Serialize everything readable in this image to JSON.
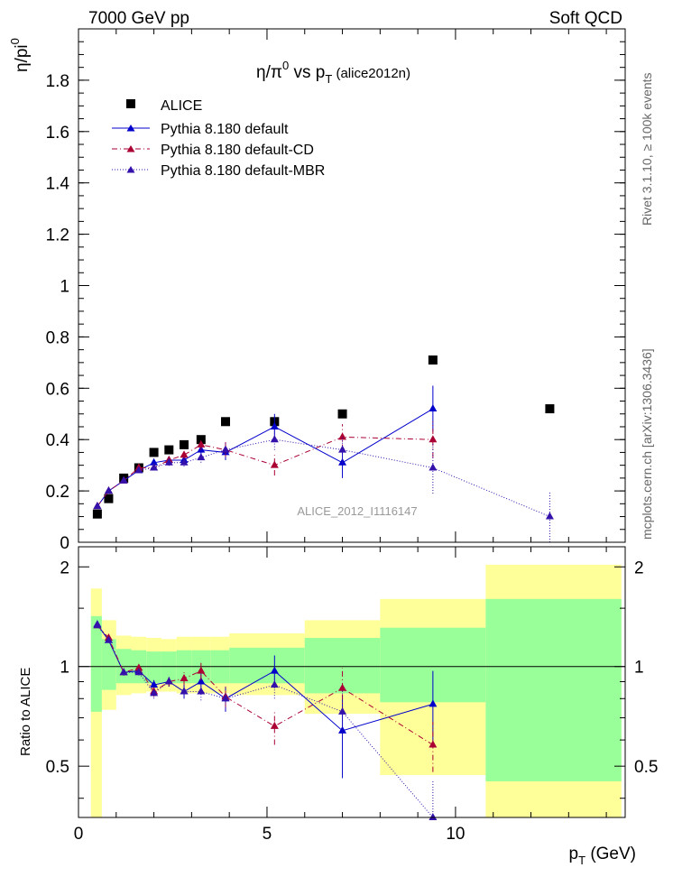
{
  "header": {
    "left": "7000 GeV pp",
    "right": "Soft QCD"
  },
  "side_labels": {
    "rivet": "Rivet 3.1.10, ≥ 100k events",
    "mcplots": "mcplots.cern.ch [arXiv:1306.3436]"
  },
  "chart_data": [
    {
      "type": "scatter",
      "title": "η/π⁰ vs p_T (alice2012n)",
      "title_parts": {
        "main": "η/π",
        "sup": "0",
        "vs": " vs p",
        "sub": "T",
        "tag": " (alice2012n)"
      },
      "ylabel": "η/pi⁰",
      "ylabel_parts": {
        "main": "η/pi",
        "sup": "0"
      },
      "xlim": [
        0,
        14.5
      ],
      "ylim": [
        0,
        2.0
      ],
      "yticks": [
        "0",
        "0.2",
        "0.4",
        "0.6",
        "0.8",
        "1",
        "1.2",
        "1.4",
        "1.6",
        "1.8"
      ],
      "watermark": "ALICE_2012_I1116147",
      "legend": [
        {
          "label": "ALICE",
          "color": "#000000",
          "marker": "square",
          "line": "none"
        },
        {
          "label": "Pythia 8.180 default",
          "color": "#0000cc",
          "marker": "triangle",
          "line": "solid"
        },
        {
          "label": "Pythia 8.180 default-CD",
          "color": "#aa0033",
          "marker": "triangle",
          "line": "dashdot"
        },
        {
          "label": "Pythia 8.180 default-MBR",
          "color": "#3311aa",
          "marker": "triangle",
          "line": "dotted"
        }
      ],
      "series": [
        {
          "name": "ALICE",
          "x": [
            0.5,
            0.8,
            1.2,
            1.6,
            2.0,
            2.4,
            2.8,
            3.25,
            3.9,
            5.2,
            7.0,
            9.4,
            12.5
          ],
          "y": [
            0.11,
            0.17,
            0.25,
            0.29,
            0.35,
            0.36,
            0.38,
            0.4,
            0.47,
            0.47,
            0.5,
            0.71,
            0.52
          ]
        },
        {
          "name": "Pythia 8.180 default",
          "x": [
            0.5,
            0.8,
            1.2,
            1.6,
            2.0,
            2.4,
            2.8,
            3.25,
            3.9,
            5.2,
            7.0,
            9.4
          ],
          "y": [
            0.14,
            0.2,
            0.24,
            0.28,
            0.31,
            0.32,
            0.32,
            0.36,
            0.35,
            0.45,
            0.31,
            0.52
          ],
          "err": [
            0.004,
            0.005,
            0.006,
            0.008,
            0.01,
            0.012,
            0.015,
            0.02,
            0.03,
            0.05,
            0.06,
            0.09
          ]
        },
        {
          "name": "Pythia 8.180 default-CD",
          "x": [
            0.5,
            0.8,
            1.2,
            1.6,
            2.0,
            2.4,
            2.8,
            3.25,
            3.9,
            5.2,
            7.0,
            9.4
          ],
          "y": [
            0.14,
            0.2,
            0.24,
            0.29,
            0.29,
            0.32,
            0.34,
            0.38,
            0.36,
            0.3,
            0.41,
            0.4
          ],
          "err": [
            0.004,
            0.005,
            0.006,
            0.008,
            0.01,
            0.012,
            0.015,
            0.02,
            0.03,
            0.04,
            0.05,
            0.07
          ]
        },
        {
          "name": "Pythia 8.180 default-MBR",
          "x": [
            0.5,
            0.8,
            1.2,
            1.6,
            2.0,
            2.4,
            2.8,
            3.25,
            3.9,
            5.2,
            7.0,
            9.4,
            12.5
          ],
          "y": [
            0.14,
            0.2,
            0.24,
            0.28,
            0.29,
            0.31,
            0.31,
            0.33,
            0.36,
            0.4,
            0.36,
            0.29,
            0.1
          ],
          "err": [
            0.004,
            0.005,
            0.006,
            0.008,
            0.01,
            0.012,
            0.015,
            0.02,
            0.03,
            0.04,
            0.05,
            0.1,
            0.1
          ]
        }
      ]
    },
    {
      "type": "scatter",
      "ylabel": "Ratio to ALICE",
      "xlabel": "p_T (GeV)",
      "xlabel_parts": {
        "main": "p",
        "sub": "T",
        "unit": " (GeV)"
      },
      "xlim": [
        0,
        14.5
      ],
      "ylim": [
        0.35,
        2.3
      ],
      "xticks": [
        "0",
        "5",
        "10"
      ],
      "yticks": [
        "0.5",
        "1",
        "2"
      ],
      "bands": [
        {
          "x0": 0.33,
          "x1": 0.62,
          "g_lo": 0.73,
          "g_hi": 1.42,
          "y_lo": 0.35,
          "y_hi": 1.72
        },
        {
          "x0": 0.62,
          "x1": 1.0,
          "g_lo": 0.85,
          "g_hi": 1.21,
          "y_lo": 0.74,
          "y_hi": 1.38
        },
        {
          "x0": 1.0,
          "x1": 1.4,
          "g_lo": 0.89,
          "g_hi": 1.13,
          "y_lo": 0.82,
          "y_hi": 1.24
        },
        {
          "x0": 1.4,
          "x1": 1.8,
          "g_lo": 0.89,
          "g_hi": 1.12,
          "y_lo": 0.83,
          "y_hi": 1.23
        },
        {
          "x0": 1.8,
          "x1": 2.2,
          "g_lo": 0.89,
          "g_hi": 1.11,
          "y_lo": 0.84,
          "y_hi": 1.22
        },
        {
          "x0": 2.2,
          "x1": 2.6,
          "g_lo": 0.89,
          "g_hi": 1.11,
          "y_lo": 0.84,
          "y_hi": 1.21
        },
        {
          "x0": 2.6,
          "x1": 3.0,
          "g_lo": 0.89,
          "g_hi": 1.12,
          "y_lo": 0.83,
          "y_hi": 1.23
        },
        {
          "x0": 3.0,
          "x1": 3.5,
          "g_lo": 0.89,
          "g_hi": 1.12,
          "y_lo": 0.83,
          "y_hi": 1.23
        },
        {
          "x0": 3.5,
          "x1": 4.0,
          "g_lo": 0.89,
          "g_hi": 1.12,
          "y_lo": 0.83,
          "y_hi": 1.23
        },
        {
          "x0": 4.0,
          "x1": 6.0,
          "g_lo": 0.89,
          "g_hi": 1.14,
          "y_lo": 0.82,
          "y_hi": 1.26
        },
        {
          "x0": 6.0,
          "x1": 8.0,
          "g_lo": 0.83,
          "g_hi": 1.22,
          "y_lo": 0.72,
          "y_hi": 1.38
        },
        {
          "x0": 8.0,
          "x1": 10.8,
          "g_lo": 0.78,
          "g_hi": 1.31,
          "y_lo": 0.47,
          "y_hi": 1.6
        },
        {
          "x0": 10.8,
          "x1": 14.4,
          "g_lo": 0.45,
          "g_hi": 1.6,
          "y_lo": 0.35,
          "y_hi": 2.03
        }
      ],
      "series": [
        {
          "name": "Pythia 8.180 default",
          "x": [
            0.5,
            0.8,
            1.2,
            1.6,
            2.0,
            2.4,
            2.8,
            3.25,
            3.9,
            5.2,
            7.0,
            9.4
          ],
          "y": [
            1.34,
            1.2,
            0.96,
            0.97,
            0.88,
            0.9,
            0.84,
            0.9,
            0.8,
            0.97,
            0.64,
            0.77
          ],
          "err": [
            0.02,
            0.02,
            0.02,
            0.02,
            0.03,
            0.03,
            0.04,
            0.06,
            0.07,
            0.11,
            0.18,
            0.2
          ]
        },
        {
          "name": "Pythia 8.180 default-CD",
          "x": [
            0.5,
            0.8,
            1.2,
            1.6,
            2.0,
            2.4,
            2.8,
            3.25,
            3.9,
            5.2,
            7.0,
            9.4
          ],
          "y": [
            1.33,
            1.22,
            0.96,
            0.99,
            0.84,
            0.9,
            0.92,
            0.97,
            0.81,
            0.66,
            0.86,
            0.58
          ],
          "err": [
            0.02,
            0.02,
            0.02,
            0.02,
            0.03,
            0.03,
            0.04,
            0.06,
            0.06,
            0.08,
            0.13,
            0.1
          ]
        },
        {
          "name": "Pythia 8.180 default-MBR",
          "x": [
            0.5,
            0.8,
            1.2,
            1.6,
            2.0,
            2.4,
            2.8,
            3.25,
            3.9,
            5.2,
            7.0,
            9.4
          ],
          "y": [
            1.33,
            1.2,
            0.96,
            0.96,
            0.83,
            0.9,
            0.84,
            0.84,
            0.8,
            0.88,
            0.73,
            0.35
          ],
          "err": [
            0.02,
            0.02,
            0.02,
            0.02,
            0.03,
            0.03,
            0.04,
            0.05,
            0.06,
            0.08,
            0.12,
            0.1
          ]
        }
      ]
    }
  ]
}
